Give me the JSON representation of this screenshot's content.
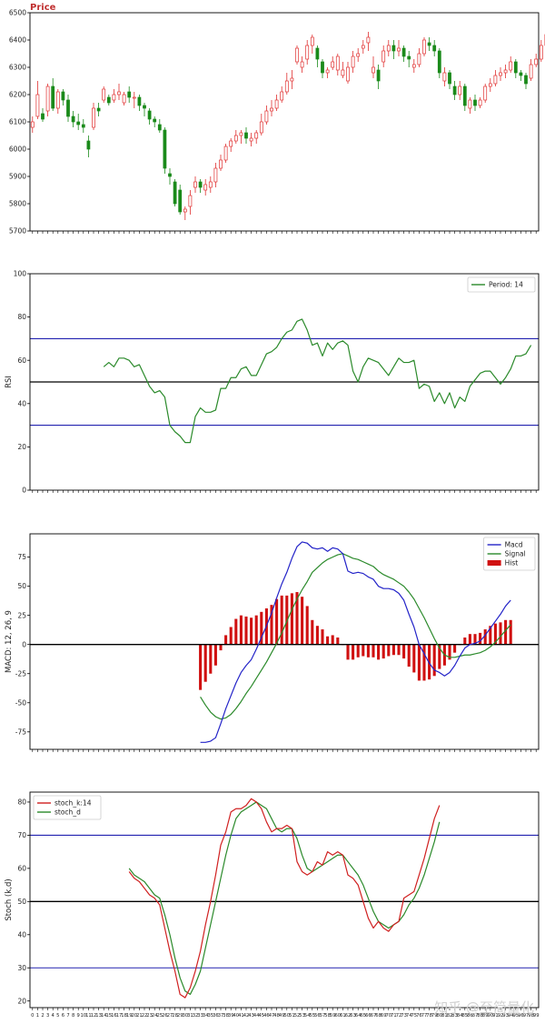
{
  "colors": {
    "up": "#e03030",
    "down": "#1a8a1a",
    "rsi_line": "#2b8a2b",
    "band_line": "#2323b0",
    "mid_line": "#000000",
    "macd_line": "#2323c8",
    "signal_line": "#2b8a2b",
    "hist": "#d01010",
    "stoch_k": "#d02020",
    "stoch_d": "#2b8a2b",
    "title": "#c03030"
  },
  "watermark": "知乎 @至简量化",
  "chart_data": [
    {
      "type": "candlestick",
      "title": "Price",
      "ylim": [
        5700,
        6500
      ],
      "yticks": [
        5700,
        5800,
        5900,
        6000,
        6100,
        6200,
        6300,
        6400,
        6500
      ],
      "ylabel": "",
      "candles": [
        [
          6080,
          6100,
          6060,
          6120
        ],
        [
          6120,
          6200,
          6110,
          6250
        ],
        [
          6130,
          6110,
          6100,
          6150
        ],
        [
          6140,
          6230,
          6120,
          6240
        ],
        [
          6230,
          6150,
          6140,
          6260
        ],
        [
          6150,
          6210,
          6130,
          6220
        ],
        [
          6210,
          6180,
          6160,
          6220
        ],
        [
          6180,
          6120,
          6100,
          6200
        ],
        [
          6120,
          6100,
          6080,
          6140
        ],
        [
          6100,
          6090,
          6070,
          6130
        ],
        [
          6090,
          6080,
          6060,
          6110
        ],
        [
          6030,
          6000,
          5970,
          6050
        ],
        [
          6080,
          6150,
          6070,
          6170
        ],
        [
          6150,
          6140,
          6120,
          6170
        ],
        [
          6180,
          6220,
          6170,
          6230
        ],
        [
          6190,
          6170,
          6160,
          6200
        ],
        [
          6180,
          6200,
          6170,
          6220
        ],
        [
          6200,
          6210,
          6180,
          6240
        ],
        [
          6170,
          6200,
          6160,
          6210
        ],
        [
          6210,
          6190,
          6170,
          6230
        ],
        [
          6190,
          6190,
          6150,
          6210
        ],
        [
          6190,
          6160,
          6140,
          6200
        ],
        [
          6160,
          6150,
          6120,
          6170
        ],
        [
          6140,
          6110,
          6090,
          6150
        ],
        [
          6110,
          6100,
          6080,
          6120
        ],
        [
          6090,
          6070,
          6060,
          6110
        ],
        [
          6070,
          5930,
          5910,
          6080
        ],
        [
          5910,
          5900,
          5870,
          5930
        ],
        [
          5880,
          5800,
          5790,
          5890
        ],
        [
          5850,
          5770,
          5760,
          5870
        ],
        [
          5770,
          5780,
          5740,
          5790
        ],
        [
          5790,
          5830,
          5760,
          5850
        ],
        [
          5860,
          5880,
          5840,
          5900
        ],
        [
          5880,
          5860,
          5840,
          5890
        ],
        [
          5850,
          5870,
          5830,
          5890
        ],
        [
          5860,
          5880,
          5840,
          5900
        ],
        [
          5880,
          5930,
          5860,
          5950
        ],
        [
          5930,
          5960,
          5920,
          5980
        ],
        [
          5960,
          6010,
          5950,
          6020
        ],
        [
          6010,
          6030,
          5990,
          6040
        ],
        [
          6030,
          6050,
          6020,
          6070
        ],
        [
          6050,
          6060,
          6020,
          6070
        ],
        [
          6060,
          6040,
          6020,
          6080
        ],
        [
          6030,
          6040,
          6010,
          6060
        ],
        [
          6040,
          6060,
          6020,
          6070
        ],
        [
          6060,
          6100,
          6050,
          6130
        ],
        [
          6100,
          6140,
          6090,
          6160
        ],
        [
          6140,
          6150,
          6120,
          6180
        ],
        [
          6150,
          6180,
          6140,
          6200
        ],
        [
          6180,
          6210,
          6170,
          6230
        ],
        [
          6210,
          6250,
          6200,
          6280
        ],
        [
          6250,
          6260,
          6220,
          6290
        ],
        [
          6320,
          6370,
          6310,
          6380
        ],
        [
          6300,
          6320,
          6280,
          6340
        ],
        [
          6330,
          6380,
          6310,
          6400
        ],
        [
          6380,
          6410,
          6350,
          6420
        ],
        [
          6370,
          6330,
          6300,
          6380
        ],
        [
          6320,
          6280,
          6260,
          6330
        ],
        [
          6280,
          6290,
          6260,
          6300
        ],
        [
          6300,
          6320,
          6290,
          6340
        ],
        [
          6290,
          6340,
          6270,
          6350
        ],
        [
          6270,
          6290,
          6260,
          6320
        ],
        [
          6250,
          6300,
          6240,
          6320
        ],
        [
          6300,
          6340,
          6280,
          6360
        ],
        [
          6340,
          6350,
          6320,
          6370
        ],
        [
          6370,
          6380,
          6350,
          6400
        ],
        [
          6390,
          6410,
          6360,
          6430
        ],
        [
          6280,
          6300,
          6260,
          6340
        ],
        [
          6290,
          6250,
          6220,
          6310
        ],
        [
          6320,
          6360,
          6300,
          6380
        ],
        [
          6360,
          6380,
          6340,
          6400
        ],
        [
          6380,
          6360,
          6330,
          6400
        ],
        [
          6360,
          6370,
          6340,
          6400
        ],
        [
          6370,
          6340,
          6320,
          6380
        ],
        [
          6340,
          6330,
          6300,
          6360
        ],
        [
          6300,
          6310,
          6280,
          6330
        ],
        [
          6310,
          6350,
          6300,
          6370
        ],
        [
          6350,
          6400,
          6340,
          6410
        ],
        [
          6390,
          6380,
          6360,
          6410
        ],
        [
          6380,
          6360,
          6340,
          6400
        ],
        [
          6360,
          6280,
          6260,
          6370
        ],
        [
          6250,
          6280,
          6230,
          6300
        ],
        [
          6280,
          6240,
          6220,
          6290
        ],
        [
          6230,
          6200,
          6180,
          6250
        ],
        [
          6200,
          6230,
          6180,
          6250
        ],
        [
          6230,
          6160,
          6140,
          6240
        ],
        [
          6150,
          6180,
          6130,
          6190
        ],
        [
          6180,
          6160,
          6140,
          6200
        ],
        [
          6160,
          6180,
          6150,
          6190
        ],
        [
          6180,
          6230,
          6170,
          6240
        ],
        [
          6230,
          6240,
          6210,
          6260
        ],
        [
          6240,
          6270,
          6230,
          6290
        ],
        [
          6270,
          6280,
          6250,
          6300
        ],
        [
          6280,
          6290,
          6260,
          6310
        ],
        [
          6290,
          6320,
          6280,
          6340
        ],
        [
          6320,
          6280,
          6260,
          6330
        ],
        [
          6280,
          6270,
          6250,
          6290
        ],
        [
          6270,
          6240,
          6220,
          6280
        ],
        [
          6260,
          6310,
          6250,
          6330
        ],
        [
          6310,
          6330,
          6300,
          6350
        ],
        [
          6330,
          6380,
          6320,
          6400
        ],
        [
          6380,
          6420,
          6370,
          6440
        ],
        [
          6410,
          6420,
          6400,
          6440
        ]
      ]
    },
    {
      "type": "line",
      "ylabel": "RSI",
      "ylim": [
        0,
        100
      ],
      "yticks": [
        0,
        20,
        40,
        60,
        80,
        100
      ],
      "hlines": [
        30,
        50,
        70
      ],
      "legend": "top-right",
      "series": [
        {
          "name": "Period: 14",
          "start": 14,
          "values": [
            57,
            59,
            57,
            61,
            61,
            60,
            57,
            58,
            53,
            48,
            45,
            46,
            43,
            30,
            27,
            25,
            22,
            22,
            34,
            38,
            36,
            36,
            37,
            47,
            47,
            52,
            52,
            56,
            57,
            53,
            53,
            58,
            63,
            64,
            66,
            70,
            73,
            74,
            78,
            79,
            74,
            67,
            68,
            62,
            68,
            65,
            68,
            69,
            67,
            55,
            50,
            57,
            61,
            60,
            59,
            56,
            53,
            57,
            61,
            59,
            59,
            60,
            47,
            49,
            48,
            41,
            45,
            40,
            45,
            38,
            43,
            41,
            48,
            51,
            54,
            55,
            55,
            52,
            49,
            52,
            56,
            62,
            62,
            63,
            67
          ]
        }
      ]
    },
    {
      "type": "line+bar",
      "ylabel": "MACD: 12, 26, 9",
      "ylim": [
        -90,
        95
      ],
      "yticks": [
        -75,
        -50,
        -25,
        0,
        25,
        50,
        75
      ],
      "legend": "top-right",
      "series": [
        {
          "name": "Macd",
          "start": 33,
          "values": [
            -84,
            -84,
            -83,
            -80,
            -68,
            -55,
            -44,
            -33,
            -24,
            -18,
            -13,
            -4,
            6,
            16,
            27,
            40,
            52,
            62,
            74,
            84,
            88,
            87,
            83,
            82,
            83,
            80,
            83,
            82,
            78,
            63,
            61,
            62,
            61,
            58,
            56,
            50,
            48,
            48,
            47,
            44,
            38,
            26,
            15,
            0,
            -8,
            -16,
            -22,
            -24,
            -27,
            -24,
            -18,
            -10,
            -3,
            0,
            1,
            3,
            8,
            14,
            20,
            26,
            33,
            38
          ]
        },
        {
          "name": "Signal",
          "start": 33,
          "values": [
            -45,
            -52,
            -58,
            -62,
            -64,
            -63,
            -60,
            -55,
            -49,
            -42,
            -36,
            -29,
            -22,
            -15,
            -7,
            1,
            10,
            20,
            30,
            39,
            47,
            54,
            62,
            66,
            70,
            73,
            75,
            77,
            78,
            76,
            74,
            73,
            71,
            69,
            67,
            63,
            60,
            58,
            56,
            53,
            50,
            45,
            39,
            31,
            23,
            14,
            5,
            -3,
            -9,
            -11,
            -11,
            -10,
            -9,
            -9,
            -8,
            -7,
            -5,
            -2,
            2,
            7,
            12,
            17
          ]
        },
        {
          "name": "Hist",
          "start": 33,
          "values": [
            -39,
            -32,
            -25,
            -18,
            -5,
            8,
            15,
            22,
            25,
            24,
            23,
            25,
            28,
            31,
            34,
            39,
            42,
            42,
            44,
            45,
            41,
            33,
            21,
            16,
            13,
            7,
            8,
            6,
            0,
            -13,
            -13,
            -11,
            -10,
            -11,
            -11,
            -13,
            -12,
            -10,
            -9,
            -9,
            -12,
            -19,
            -24,
            -31,
            -31,
            -30,
            -27,
            -21,
            -18,
            -13,
            -7,
            0,
            6,
            9,
            9,
            10,
            13,
            16,
            18,
            19,
            21,
            21
          ]
        }
      ]
    },
    {
      "type": "line",
      "ylabel": "Stoch (k,d)",
      "ylim": [
        18,
        83
      ],
      "yticks": [
        20,
        30,
        40,
        50,
        60,
        70,
        80
      ],
      "hlines": [
        30,
        50,
        70
      ],
      "legend": "top-left",
      "xticks_start": 0,
      "xticks_end": 99,
      "series": [
        {
          "name": "stoch_k:14",
          "start": 19,
          "values": [
            59,
            57,
            56,
            54,
            52,
            51,
            49,
            42,
            35,
            29,
            22,
            21,
            24,
            29,
            35,
            43,
            50,
            58,
            67,
            71,
            77,
            78,
            78,
            79,
            81,
            80,
            78,
            74,
            71,
            72,
            72,
            73,
            72,
            62,
            59,
            58,
            59,
            62,
            61,
            65,
            64,
            65,
            64,
            58,
            57,
            55,
            50,
            45,
            42,
            44,
            42,
            41,
            43,
            44,
            51,
            52,
            53,
            58,
            63,
            69,
            75,
            79
          ]
        },
        {
          "name": "stoch_d",
          "start": 19,
          "values": [
            60,
            58,
            57,
            56,
            54,
            52,
            51,
            46,
            40,
            33,
            27,
            23,
            22,
            25,
            29,
            36,
            43,
            50,
            57,
            64,
            70,
            75,
            77,
            78,
            79,
            80,
            79,
            78,
            75,
            72,
            71,
            72,
            72,
            69,
            64,
            60,
            59,
            60,
            61,
            62,
            63,
            64,
            64,
            62,
            60,
            58,
            55,
            51,
            47,
            44,
            43,
            42,
            43,
            44,
            46,
            49,
            51,
            54,
            58,
            63,
            68,
            74
          ]
        }
      ]
    }
  ]
}
